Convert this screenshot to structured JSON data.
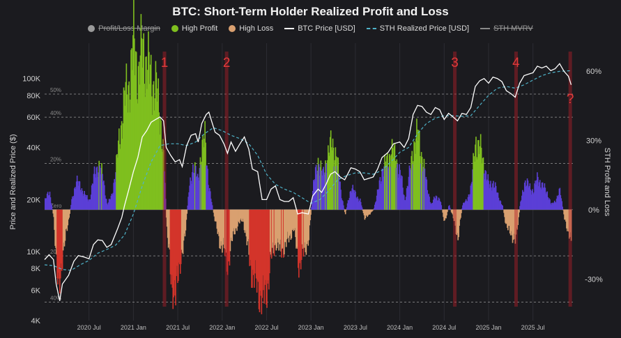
{
  "chart_data": {
    "type": "line",
    "title": "BTC: Short-Term Holder Realized Profit and Loss",
    "legend": [
      {
        "name": "Profit/Loss Margin",
        "color": "#9a9a9a",
        "style": "dot",
        "disabled": true
      },
      {
        "name": "High Profit",
        "color": "#7fbf1f",
        "style": "dot",
        "disabled": false
      },
      {
        "name": "High Loss",
        "color": "#d9a070",
        "style": "dot",
        "disabled": false
      },
      {
        "name": "BTC Price [USD]",
        "color": "#ffffff",
        "style": "line",
        "disabled": false
      },
      {
        "name": "STH Realized Price [USD]",
        "color": "#4fb3c9",
        "style": "dashed",
        "disabled": false
      },
      {
        "name": "STH MVRV",
        "color": "#8a8a8a",
        "style": "line",
        "disabled": true
      }
    ],
    "ylabel": "Price and Realized Price ($)",
    "y2label": "STH Profit and Loss",
    "y_scale": "log",
    "ylim": [
      4000,
      160000
    ],
    "y_ticks": [
      {
        "v": 4000,
        "label": "4K"
      },
      {
        "v": 6000,
        "label": "6K"
      },
      {
        "v": 8000,
        "label": "8K"
      },
      {
        "v": 10000,
        "label": "10K"
      },
      {
        "v": 20000,
        "label": "20K"
      },
      {
        "v": 40000,
        "label": "40K"
      },
      {
        "v": 60000,
        "label": "60K"
      },
      {
        "v": 80000,
        "label": "80K"
      },
      {
        "v": 100000,
        "label": "100K"
      }
    ],
    "y2lim": [
      -48,
      72
    ],
    "y2_ticks": [
      {
        "v": 60,
        "label": "60%"
      },
      {
        "v": 30,
        "label": "30%"
      },
      {
        "v": 0,
        "label": "0%"
      },
      {
        "v": -30,
        "label": "-30%"
      }
    ],
    "ref_lines": [
      {
        "v": 50,
        "label": "50%"
      },
      {
        "v": 40,
        "label": "40%"
      },
      {
        "v": 20,
        "label": "20%"
      },
      {
        "v": 0,
        "label": "Zero"
      },
      {
        "v": -20,
        "label": "20%"
      },
      {
        "v": -40,
        "label": "40%"
      }
    ],
    "xlim": [
      2020.0,
      2025.95
    ],
    "x_ticks": [
      {
        "v": 2020.5,
        "label": "2020 Jul"
      },
      {
        "v": 2021.0,
        "label": "2021 Jan"
      },
      {
        "v": 2021.5,
        "label": "2021 Jul"
      },
      {
        "v": 2022.0,
        "label": "2022 Jan"
      },
      {
        "v": 2022.5,
        "label": "2022 Jul"
      },
      {
        "v": 2023.0,
        "label": "2023 Jan"
      },
      {
        "v": 2023.5,
        "label": "2023 Jul"
      },
      {
        "v": 2024.0,
        "label": "2024 Jan"
      },
      {
        "v": 2024.5,
        "label": "2024 Jul"
      },
      {
        "v": 2025.0,
        "label": "2025 Jan"
      },
      {
        "v": 2025.5,
        "label": "2025 Jul"
      }
    ],
    "markers": [
      {
        "x": 2021.35,
        "label": "1"
      },
      {
        "x": 2022.05,
        "label": "2"
      },
      {
        "x": 2024.62,
        "label": "3"
      },
      {
        "x": 2025.31,
        "label": "4"
      },
      {
        "x": 2025.92,
        "label": "?"
      }
    ],
    "btc_price": [
      [
        2020.0,
        9000
      ],
      [
        2020.05,
        9600
      ],
      [
        2020.1,
        9000
      ],
      [
        2020.13,
        6500
      ],
      [
        2020.17,
        5200
      ],
      [
        2020.2,
        6500
      ],
      [
        2020.27,
        7300
      ],
      [
        2020.33,
        8800
      ],
      [
        2020.38,
        9500
      ],
      [
        2020.45,
        9300
      ],
      [
        2020.5,
        9100
      ],
      [
        2020.55,
        11000
      ],
      [
        2020.6,
        11700
      ],
      [
        2020.65,
        11600
      ],
      [
        2020.7,
        10600
      ],
      [
        2020.75,
        11000
      ],
      [
        2020.82,
        13500
      ],
      [
        2020.87,
        15800
      ],
      [
        2020.9,
        18500
      ],
      [
        2020.95,
        23000
      ],
      [
        2021.0,
        29000
      ],
      [
        2021.05,
        35000
      ],
      [
        2021.1,
        46000
      ],
      [
        2021.15,
        50000
      ],
      [
        2021.2,
        56000
      ],
      [
        2021.25,
        58000
      ],
      [
        2021.3,
        60000
      ],
      [
        2021.34,
        57000
      ],
      [
        2021.37,
        40000
      ],
      [
        2021.42,
        36000
      ],
      [
        2021.47,
        33000
      ],
      [
        2021.52,
        34000
      ],
      [
        2021.55,
        31000
      ],
      [
        2021.6,
        41000
      ],
      [
        2021.65,
        47000
      ],
      [
        2021.7,
        48000
      ],
      [
        2021.73,
        43000
      ],
      [
        2021.77,
        55000
      ],
      [
        2021.82,
        62000
      ],
      [
        2021.85,
        64000
      ],
      [
        2021.88,
        57000
      ],
      [
        2021.92,
        49000
      ],
      [
        2021.97,
        47000
      ],
      [
        2022.02,
        42000
      ],
      [
        2022.06,
        37000
      ],
      [
        2022.1,
        43000
      ],
      [
        2022.15,
        38000
      ],
      [
        2022.2,
        42000
      ],
      [
        2022.25,
        46000
      ],
      [
        2022.3,
        39000
      ],
      [
        2022.34,
        30000
      ],
      [
        2022.4,
        29000
      ],
      [
        2022.45,
        20000
      ],
      [
        2022.5,
        20000
      ],
      [
        2022.55,
        23000
      ],
      [
        2022.6,
        24000
      ],
      [
        2022.65,
        20000
      ],
      [
        2022.7,
        19500
      ],
      [
        2022.75,
        19500
      ],
      [
        2022.8,
        20500
      ],
      [
        2022.85,
        16500
      ],
      [
        2022.9,
        16800
      ],
      [
        2022.97,
        16500
      ],
      [
        2023.02,
        21000
      ],
      [
        2023.08,
        23000
      ],
      [
        2023.12,
        22000
      ],
      [
        2023.17,
        24500
      ],
      [
        2023.22,
        28000
      ],
      [
        2023.27,
        29000
      ],
      [
        2023.33,
        27000
      ],
      [
        2023.38,
        26000
      ],
      [
        2023.45,
        30500
      ],
      [
        2023.5,
        30000
      ],
      [
        2023.55,
        29000
      ],
      [
        2023.6,
        26000
      ],
      [
        2023.65,
        26500
      ],
      [
        2023.7,
        27000
      ],
      [
        2023.75,
        30000
      ],
      [
        2023.8,
        35000
      ],
      [
        2023.87,
        37500
      ],
      [
        2023.93,
        42000
      ],
      [
        2024.0,
        43000
      ],
      [
        2024.05,
        40000
      ],
      [
        2024.1,
        45000
      ],
      [
        2024.15,
        62000
      ],
      [
        2024.2,
        70000
      ],
      [
        2024.25,
        69000
      ],
      [
        2024.3,
        64000
      ],
      [
        2024.35,
        62000
      ],
      [
        2024.4,
        68000
      ],
      [
        2024.45,
        66000
      ],
      [
        2024.5,
        58000
      ],
      [
        2024.55,
        63000
      ],
      [
        2024.6,
        60000
      ],
      [
        2024.65,
        57000
      ],
      [
        2024.7,
        63000
      ],
      [
        2024.75,
        62000
      ],
      [
        2024.8,
        68000
      ],
      [
        2024.85,
        90000
      ],
      [
        2024.9,
        97000
      ],
      [
        2024.95,
        100000
      ],
      [
        2025.0,
        94000
      ],
      [
        2025.05,
        102000
      ],
      [
        2025.1,
        100000
      ],
      [
        2025.15,
        96000
      ],
      [
        2025.2,
        85000
      ],
      [
        2025.25,
        82000
      ],
      [
        2025.3,
        78000
      ],
      [
        2025.35,
        94000
      ],
      [
        2025.4,
        104000
      ],
      [
        2025.45,
        106000
      ],
      [
        2025.5,
        108000
      ],
      [
        2025.55,
        118000
      ],
      [
        2025.6,
        115000
      ],
      [
        2025.65,
        118000
      ],
      [
        2025.7,
        111000
      ],
      [
        2025.75,
        114000
      ],
      [
        2025.8,
        122000
      ],
      [
        2025.85,
        110000
      ],
      [
        2025.9,
        103000
      ],
      [
        2025.93,
        92000
      ]
    ],
    "sth_realized_price": [
      [
        2020.0,
        8400
      ],
      [
        2020.1,
        8300
      ],
      [
        2020.2,
        7900
      ],
      [
        2020.3,
        7800
      ],
      [
        2020.4,
        8400
      ],
      [
        2020.5,
        8900
      ],
      [
        2020.6,
        9800
      ],
      [
        2020.7,
        10300
      ],
      [
        2020.8,
        10900
      ],
      [
        2020.9,
        12500
      ],
      [
        2021.0,
        16500
      ],
      [
        2021.1,
        24000
      ],
      [
        2021.2,
        33000
      ],
      [
        2021.3,
        41000
      ],
      [
        2021.4,
        42000
      ],
      [
        2021.5,
        42000
      ],
      [
        2021.6,
        41000
      ],
      [
        2021.7,
        43000
      ],
      [
        2021.8,
        48000
      ],
      [
        2021.9,
        52000
      ],
      [
        2022.0,
        50000
      ],
      [
        2022.1,
        47000
      ],
      [
        2022.2,
        45000
      ],
      [
        2022.3,
        42000
      ],
      [
        2022.4,
        36000
      ],
      [
        2022.5,
        28000
      ],
      [
        2022.6,
        24500
      ],
      [
        2022.7,
        23000
      ],
      [
        2022.8,
        22000
      ],
      [
        2022.9,
        20500
      ],
      [
        2023.0,
        19000
      ],
      [
        2023.1,
        20000
      ],
      [
        2023.2,
        22500
      ],
      [
        2023.3,
        26000
      ],
      [
        2023.4,
        27500
      ],
      [
        2023.5,
        28500
      ],
      [
        2023.6,
        28500
      ],
      [
        2023.7,
        28000
      ],
      [
        2023.8,
        29500
      ],
      [
        2023.9,
        33000
      ],
      [
        2024.0,
        37500
      ],
      [
        2024.1,
        40000
      ],
      [
        2024.2,
        48000
      ],
      [
        2024.3,
        55000
      ],
      [
        2024.4,
        59000
      ],
      [
        2024.5,
        61000
      ],
      [
        2024.6,
        61000
      ],
      [
        2024.7,
        60500
      ],
      [
        2024.8,
        61000
      ],
      [
        2024.9,
        70000
      ],
      [
        2025.0,
        80000
      ],
      [
        2025.1,
        88000
      ],
      [
        2025.2,
        90000
      ],
      [
        2025.3,
        88000
      ],
      [
        2025.4,
        92000
      ],
      [
        2025.5,
        98000
      ],
      [
        2025.6,
        104000
      ],
      [
        2025.7,
        108000
      ],
      [
        2025.8,
        110000
      ],
      [
        2025.93,
        111000
      ]
    ],
    "sth_pnl_margin": [
      [
        2020.0,
        4
      ],
      [
        2020.05,
        8
      ],
      [
        2020.1,
        -4
      ],
      [
        2020.15,
        -38
      ],
      [
        2020.2,
        -18
      ],
      [
        2020.25,
        -8
      ],
      [
        2020.3,
        4
      ],
      [
        2020.35,
        12
      ],
      [
        2020.4,
        10
      ],
      [
        2020.45,
        6
      ],
      [
        2020.5,
        4
      ],
      [
        2020.55,
        14
      ],
      [
        2020.6,
        20
      ],
      [
        2020.65,
        14
      ],
      [
        2020.7,
        2
      ],
      [
        2020.75,
        6
      ],
      [
        2020.8,
        18
      ],
      [
        2020.85,
        35
      ],
      [
        2020.9,
        48
      ],
      [
        2020.95,
        55
      ],
      [
        2021.0,
        72
      ],
      [
        2021.05,
        58
      ],
      [
        2021.1,
        70
      ],
      [
        2021.15,
        62
      ],
      [
        2021.2,
        56
      ],
      [
        2021.25,
        52
      ],
      [
        2021.3,
        40
      ],
      [
        2021.34,
        20
      ],
      [
        2021.37,
        -8
      ],
      [
        2021.42,
        -30
      ],
      [
        2021.47,
        -38
      ],
      [
        2021.52,
        -22
      ],
      [
        2021.57,
        -14
      ],
      [
        2021.62,
        8
      ],
      [
        2021.67,
        20
      ],
      [
        2021.72,
        12
      ],
      [
        2021.76,
        26
      ],
      [
        2021.8,
        30
      ],
      [
        2021.84,
        12
      ],
      [
        2021.88,
        2
      ],
      [
        2021.92,
        -6
      ],
      [
        2021.97,
        -14
      ],
      [
        2022.02,
        -18
      ],
      [
        2022.06,
        -24
      ],
      [
        2022.12,
        -10
      ],
      [
        2022.18,
        -6
      ],
      [
        2022.23,
        -4
      ],
      [
        2022.28,
        -16
      ],
      [
        2022.33,
        -28
      ],
      [
        2022.38,
        -32
      ],
      [
        2022.45,
        -40
      ],
      [
        2022.5,
        -34
      ],
      [
        2022.55,
        -20
      ],
      [
        2022.6,
        -14
      ],
      [
        2022.65,
        -18
      ],
      [
        2022.7,
        -16
      ],
      [
        2022.75,
        -12
      ],
      [
        2022.8,
        -8
      ],
      [
        2022.86,
        -24
      ],
      [
        2022.92,
        -18
      ],
      [
        2022.97,
        -12
      ],
      [
        2023.02,
        10
      ],
      [
        2023.08,
        22
      ],
      [
        2023.13,
        14
      ],
      [
        2023.18,
        24
      ],
      [
        2023.23,
        28
      ],
      [
        2023.28,
        24
      ],
      [
        2023.33,
        8
      ],
      [
        2023.38,
        -2
      ],
      [
        2023.45,
        10
      ],
      [
        2023.5,
        6
      ],
      [
        2023.55,
        4
      ],
      [
        2023.6,
        -4
      ],
      [
        2023.65,
        -2
      ],
      [
        2023.7,
        0
      ],
      [
        2023.75,
        8
      ],
      [
        2023.8,
        18
      ],
      [
        2023.85,
        20
      ],
      [
        2023.9,
        26
      ],
      [
        2023.95,
        22
      ],
      [
        2024.0,
        16
      ],
      [
        2024.05,
        4
      ],
      [
        2024.1,
        14
      ],
      [
        2024.15,
        28
      ],
      [
        2024.2,
        32
      ],
      [
        2024.25,
        22
      ],
      [
        2024.3,
        10
      ],
      [
        2024.35,
        2
      ],
      [
        2024.4,
        6
      ],
      [
        2024.45,
        4
      ],
      [
        2024.5,
        -6
      ],
      [
        2024.55,
        2
      ],
      [
        2024.6,
        -4
      ],
      [
        2024.65,
        -12
      ],
      [
        2024.7,
        2
      ],
      [
        2024.75,
        4
      ],
      [
        2024.8,
        10
      ],
      [
        2024.85,
        30
      ],
      [
        2024.9,
        26
      ],
      [
        2024.95,
        18
      ],
      [
        2025.0,
        10
      ],
      [
        2025.05,
        12
      ],
      [
        2025.1,
        6
      ],
      [
        2025.15,
        2
      ],
      [
        2025.2,
        -8
      ],
      [
        2025.25,
        -10
      ],
      [
        2025.3,
        -14
      ],
      [
        2025.35,
        2
      ],
      [
        2025.4,
        12
      ],
      [
        2025.45,
        10
      ],
      [
        2025.5,
        8
      ],
      [
        2025.55,
        14
      ],
      [
        2025.6,
        10
      ],
      [
        2025.65,
        8
      ],
      [
        2025.7,
        2
      ],
      [
        2025.75,
        4
      ],
      [
        2025.8,
        8
      ],
      [
        2025.85,
        -4
      ],
      [
        2025.9,
        -10
      ],
      [
        2025.93,
        -16
      ]
    ]
  }
}
